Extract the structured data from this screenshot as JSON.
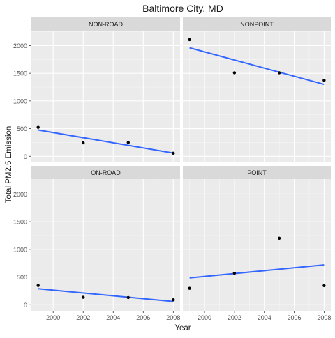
{
  "chart_data": {
    "type": "scatter",
    "title": "Baltimore City, MD",
    "xlabel": "Year",
    "ylabel": "Total PM2.5 Emission",
    "xlim": [
      1998.55,
      2008.45
    ],
    "ylim": [
      -110,
      2270
    ],
    "xticks": [
      2000,
      2002,
      2004,
      2006,
      2008
    ],
    "yticks": [
      0,
      500,
      1000,
      1500,
      2000
    ],
    "grid": true,
    "x": [
      1999,
      2002,
      2005,
      2008
    ],
    "colors": {
      "panel_bg": "#ebebeb",
      "strip_bg": "#d9d9d9",
      "grid_major": "#ffffff",
      "point": "#000000",
      "line": "#3366ff",
      "text": "#1a1a1a",
      "tick_label": "#4d4d4d"
    },
    "panels": [
      {
        "strip": "NON-ROAD",
        "values": [
          522.94,
          242.63,
          248.93,
          55.82
        ],
        "trend": [
          475.3,
          57.9
        ]
      },
      {
        "strip": "NONPOINT",
        "values": [
          2107.63,
          1509.5,
          1509.5,
          1373.21
        ],
        "trend": [
          1960,
          1300
        ]
      },
      {
        "strip": "ON-ROAD",
        "values": [
          346.82,
          134.31,
          130.43,
          88.28
        ],
        "trend": [
          290,
          58
        ]
      },
      {
        "strip": "POINT",
        "values": [
          296.8,
          569.26,
          1202.49,
          344.98
        ],
        "trend": [
          485,
          720
        ]
      }
    ]
  }
}
